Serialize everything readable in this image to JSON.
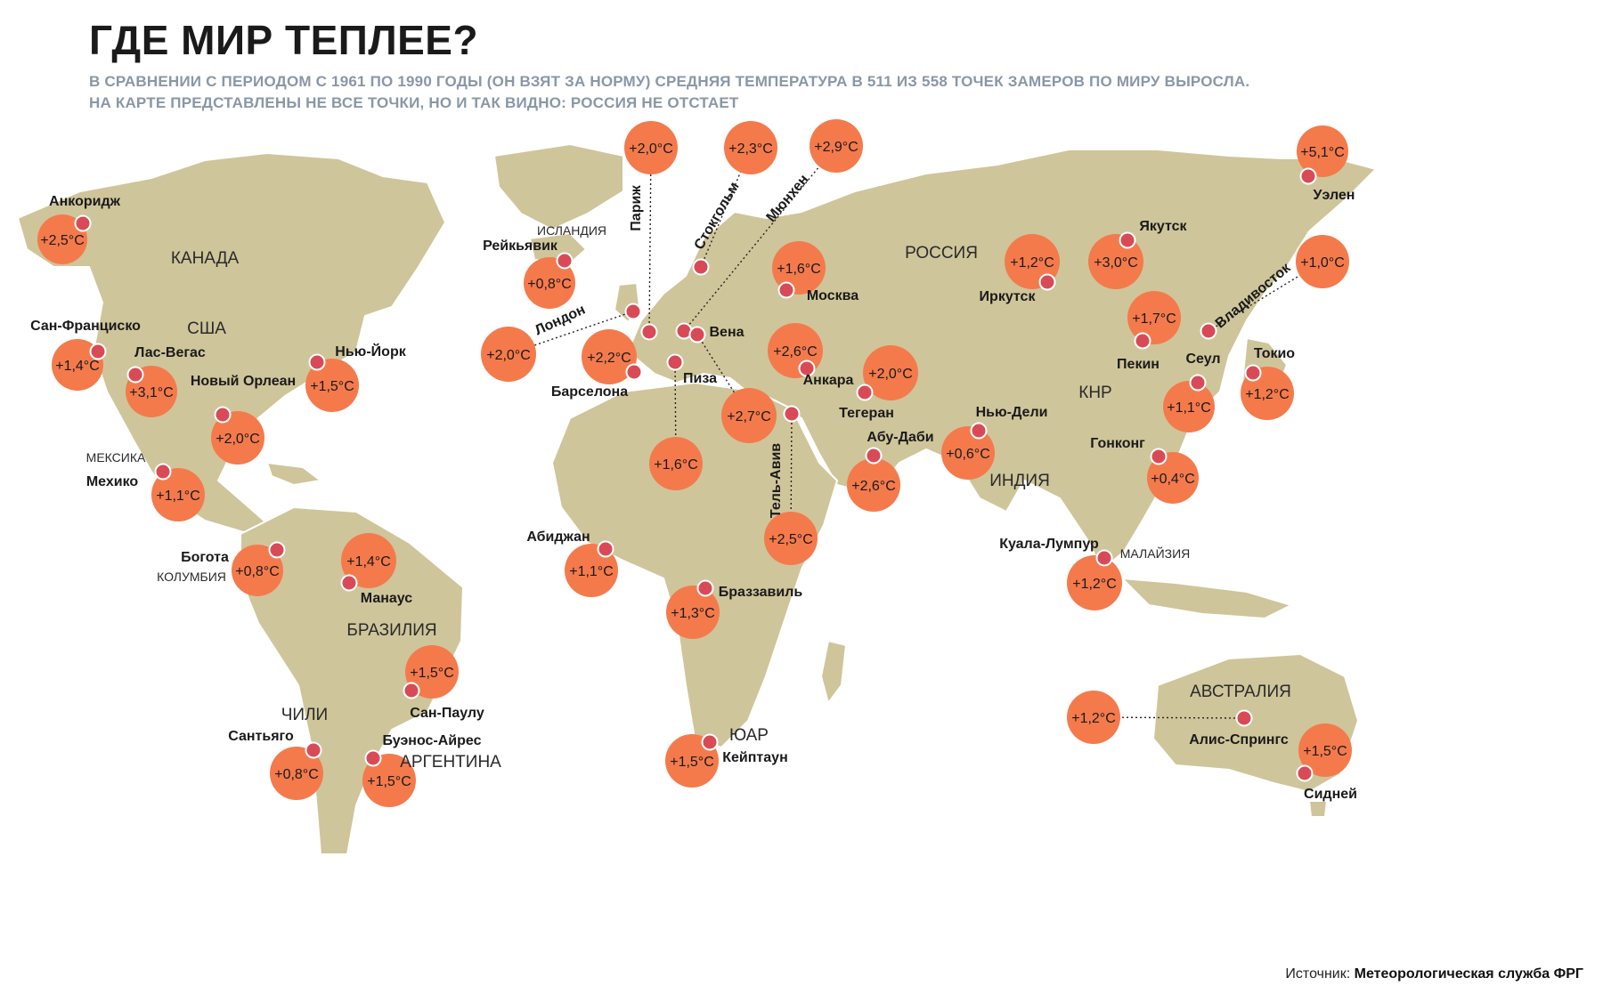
{
  "title": "ГДЕ МИР ТЕПЛЕЕ?",
  "subtitle_line1": "В СРАВНЕНИИ С ПЕРИОДОМ С 1961 ПО 1990 ГОДЫ (ОН ВЗЯТ ЗА НОРМУ) СРЕДНЯЯ ТЕМПЕРАТУРА В 511 ИЗ 558 ТОЧЕК ЗАМЕРОВ ПО МИРУ ВЫРОСЛА.",
  "subtitle_line2": "НА КАРТЕ ПРЕДСТАВЛЕНЫ НЕ ВСЕ ТОЧКИ, НО И ТАК ВИДНО: РОССИЯ НЕ ОТСТАЕТ",
  "source_label": "Источник:",
  "source_value": "Метеорологическая служба ФРГ",
  "colors": {
    "land": "#cfc59a",
    "border": "#ffffff",
    "bubble": "#f47a4c",
    "marker": "#d94a57",
    "text": "#1a1a1a",
    "subtitle": "#8a97a6"
  },
  "countries": [
    "КАНАДА",
    "США",
    "МЕКСИКА",
    "КОЛУМБИЯ",
    "БРАЗИЛИЯ",
    "ЧИЛИ",
    "АРГЕНТИНА",
    "ИСЛАНДИЯ",
    "РОССИЯ",
    "КНР",
    "ИНДИЯ",
    "МАЛАЙЗИЯ",
    "ЮАР",
    "АВСТРАЛИЯ"
  ],
  "stations": [
    {
      "city": "Анкоридж",
      "anomaly": "+2,5°C"
    },
    {
      "city": "Сан-Франциско",
      "anomaly": "+1,4°C"
    },
    {
      "city": "Лас-Вегас",
      "anomaly": "+3,1°C"
    },
    {
      "city": "Новый Орлеан",
      "anomaly": "+2,0°C"
    },
    {
      "city": "Нью-Йорк",
      "anomaly": "+1,5°C"
    },
    {
      "city": "Мехико",
      "anomaly": "+1,1°C"
    },
    {
      "city": "Богота",
      "anomaly": "+0,8°C"
    },
    {
      "city": "Манаус",
      "anomaly": "+1,4°C"
    },
    {
      "city": "Сан-Паулу",
      "anomaly": "+1,5°C"
    },
    {
      "city": "Сантьяго",
      "anomaly": "+0,8°C"
    },
    {
      "city": "Буэнос-Айрес",
      "anomaly": "+1,5°C"
    },
    {
      "city": "Рейкьявик",
      "anomaly": "+0,8°C"
    },
    {
      "city": "Лондон",
      "anomaly": "+2,0°C"
    },
    {
      "city": "Париж",
      "anomaly": "+2,0°C"
    },
    {
      "city": "Стокгольм",
      "anomaly": "+2,3°C"
    },
    {
      "city": "Мюнхен",
      "anomaly": "+2,9°C"
    },
    {
      "city": "Барселона",
      "anomaly": "+2,2°C"
    },
    {
      "city": "Вена",
      "anomaly": "+2,7°C"
    },
    {
      "city": "Пиза",
      "anomaly": "+1,6°C"
    },
    {
      "city": "Москва",
      "anomaly": "+1,6°C"
    },
    {
      "city": "Анкара",
      "anomaly": "+2,6°C"
    },
    {
      "city": "Тель-Авив",
      "anomaly": "+2,5°C"
    },
    {
      "city": "Тегеран",
      "anomaly": "+2,0°C"
    },
    {
      "city": "Абу-Даби",
      "anomaly": "+2,6°C"
    },
    {
      "city": "Абиджан",
      "anomaly": "+1,1°C"
    },
    {
      "city": "Браззавиль",
      "anomaly": "+1,3°C"
    },
    {
      "city": "Кейптаун",
      "anomaly": "+1,5°C"
    },
    {
      "city": "Иркутск",
      "anomaly": "+1,2°C"
    },
    {
      "city": "Якутск",
      "anomaly": "+3,0°C"
    },
    {
      "city": "Уэлен",
      "anomaly": "+5,1°C"
    },
    {
      "city": "Владивосток",
      "anomaly": "+1,0°C"
    },
    {
      "city": "Пекин",
      "anomaly": "+1,7°C"
    },
    {
      "city": "Сеул",
      "anomaly": "+1,1°C"
    },
    {
      "city": "Токио",
      "anomaly": "+1,2°C"
    },
    {
      "city": "Нью-Дели",
      "anomaly": "+0,6°C"
    },
    {
      "city": "Гонконг",
      "anomaly": "+0,4°C"
    },
    {
      "city": "Куала-Лумпур",
      "anomaly": "+1,2°C"
    },
    {
      "city": "Алис-Спрингс",
      "anomaly": "+1,2°C"
    },
    {
      "city": "Сидней",
      "anomaly": "+1,5°C"
    }
  ]
}
